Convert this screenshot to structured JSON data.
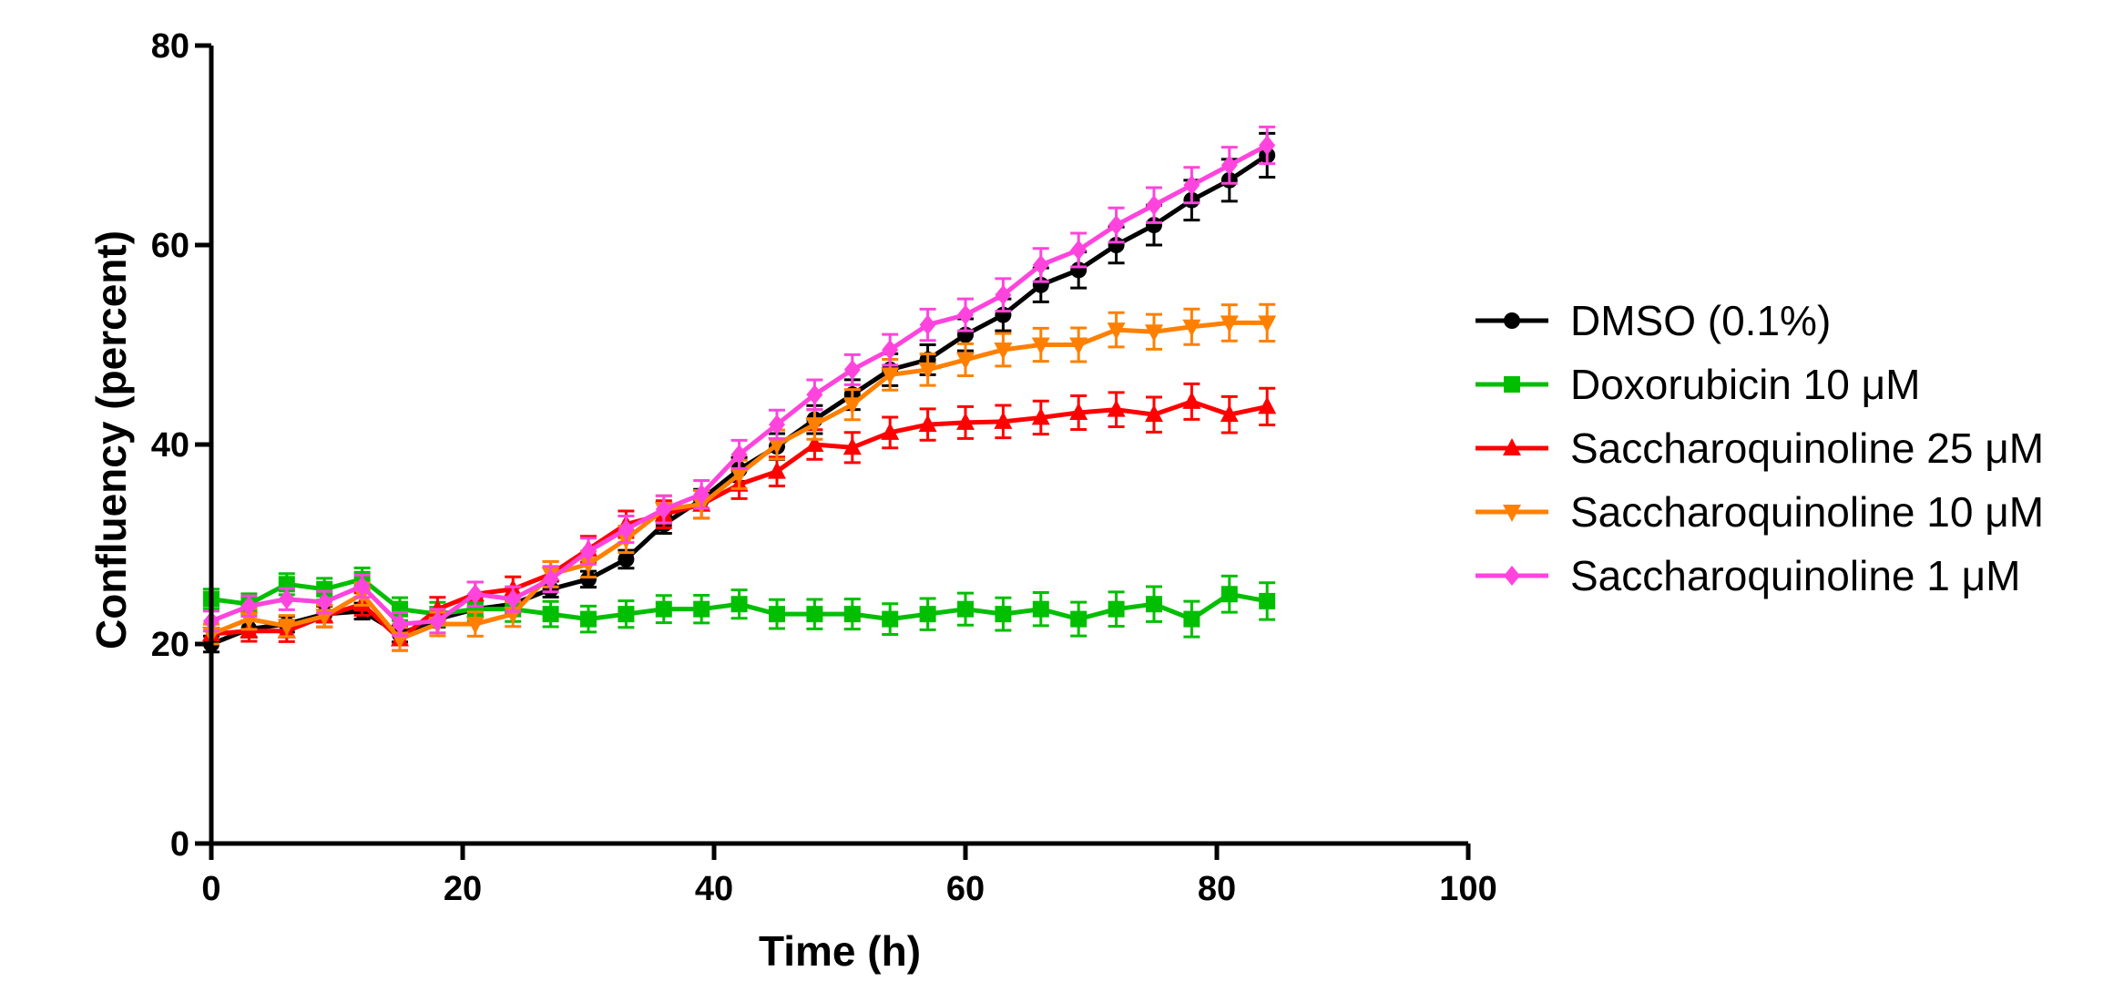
{
  "chart_data": {
    "type": "line",
    "title": "",
    "xlabel": "Time (h)",
    "ylabel": "Confluency (percent)",
    "xlim": [
      0,
      100
    ],
    "ylim": [
      0,
      80
    ],
    "xticks": [
      0,
      20,
      40,
      60,
      80,
      100
    ],
    "yticks": [
      0,
      20,
      40,
      60,
      80
    ],
    "x": [
      0,
      3,
      6,
      9,
      12,
      15,
      18,
      21,
      24,
      27,
      30,
      33,
      36,
      39,
      42,
      45,
      48,
      51,
      54,
      57,
      60,
      63,
      66,
      69,
      72,
      75,
      78,
      81,
      84
    ],
    "legend_position": "right",
    "series": [
      {
        "name": "DMSO (0.1%)",
        "color": "#000000",
        "marker": "circle",
        "values": [
          20.0,
          21.5,
          22.0,
          23.0,
          23.3,
          21.0,
          22.5,
          23.5,
          24.0,
          25.5,
          26.5,
          28.5,
          32.0,
          34.5,
          37.5,
          39.8,
          42.5,
          45.0,
          47.5,
          48.5,
          51.0,
          53.0,
          56.0,
          57.5,
          60.0,
          62.0,
          64.5,
          66.5,
          69.0
        ],
        "errors": [
          0.8,
          0.8,
          0.8,
          0.8,
          0.8,
          0.8,
          0.8,
          0.8,
          0.8,
          0.8,
          0.8,
          0.9,
          0.9,
          1.0,
          1.2,
          1.3,
          1.4,
          1.5,
          1.6,
          1.5,
          1.6,
          1.6,
          1.7,
          1.8,
          1.8,
          2.0,
          2.0,
          2.1,
          2.2
        ]
      },
      {
        "name": "Doxorubicin 10 μM",
        "color": "#00BF00",
        "marker": "square",
        "values": [
          24.5,
          24.0,
          26.0,
          25.5,
          26.5,
          23.5,
          23.0,
          23.5,
          23.5,
          23.0,
          22.5,
          23.0,
          23.5,
          23.5,
          24.0,
          23.0,
          23.0,
          23.0,
          22.5,
          23.0,
          23.5,
          23.0,
          23.5,
          22.5,
          23.5,
          24.0,
          22.5,
          25.0,
          24.3
        ]
      },
      {
        "name": "Saccharoquinoline 25 μM",
        "color": "#FF0000",
        "marker": "triangle-up",
        "values": [
          21.0,
          21.3,
          21.3,
          22.8,
          24.0,
          20.5,
          23.5,
          25.0,
          25.5,
          27.0,
          29.5,
          32.0,
          33.0,
          34.0,
          36.0,
          37.3,
          40.0,
          39.7,
          41.2,
          42.0,
          42.2,
          42.3,
          42.7,
          43.2,
          43.5,
          43.0,
          44.3,
          43.0,
          43.8
        ]
      },
      {
        "name": "Saccharoquinoline 10 μM",
        "color": "#FF8000",
        "marker": "triangle-down",
        "values": [
          21.0,
          22.5,
          21.8,
          22.8,
          25.0,
          20.5,
          22.0,
          22.0,
          23.0,
          27.0,
          28.0,
          30.5,
          33.5,
          34.0,
          37.0,
          40.0,
          42.0,
          44.0,
          47.0,
          47.5,
          48.5,
          49.5,
          50.0,
          50.0,
          51.5,
          51.3,
          51.8,
          52.2,
          52.2
        ]
      },
      {
        "name": "Saccharoquinoline 1 μM",
        "color": "#FF44DD",
        "marker": "diamond",
        "values": [
          22.3,
          23.8,
          24.5,
          24.2,
          25.8,
          22.0,
          22.3,
          25.0,
          24.5,
          26.5,
          29.3,
          31.5,
          33.5,
          35.0,
          39.0,
          42.0,
          45.0,
          47.5,
          49.5,
          52.0,
          53.0,
          55.0,
          58.0,
          59.5,
          62.0,
          64.0,
          66.0,
          68.0,
          70.0
        ]
      }
    ]
  }
}
